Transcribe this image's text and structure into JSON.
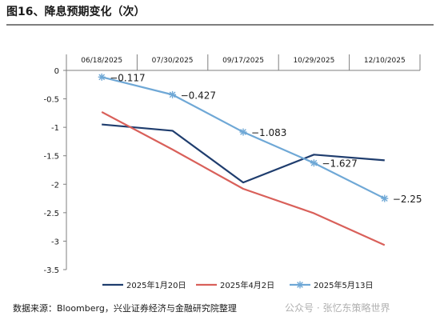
{
  "title": "图16、降息预期变化（次）",
  "source": "数据来源：Bloomberg，兴业证券经济与金融研究院整理",
  "watermark": "公众号 · 张忆东策略世界",
  "chart_data": {
    "type": "line",
    "categories": [
      "06/18/2025",
      "07/30/2025",
      "09/17/2025",
      "10/29/2025",
      "12/10/2025"
    ],
    "x_axis_position": "top",
    "ylim": [
      -3.5,
      0
    ],
    "yticks": [
      "0",
      "-0.5",
      "-1",
      "-1.5",
      "-2",
      "-2.5",
      "-3",
      "-3.5"
    ],
    "ytick_values": [
      0,
      -0.5,
      -1,
      -1.5,
      -2,
      -2.5,
      -3,
      -3.5
    ],
    "grid": false,
    "legend_position": "bottom",
    "series": [
      {
        "name": "2025年1月20日",
        "color": "#1f3d6e",
        "marker": "none",
        "values": [
          -0.95,
          -1.06,
          -1.97,
          -1.48,
          -1.58
        ]
      },
      {
        "name": "2025年4月2日",
        "color": "#d9605a",
        "marker": "none",
        "values": [
          -0.73,
          -1.39,
          -2.08,
          -2.51,
          -3.07
        ]
      },
      {
        "name": "2025年5月13日",
        "color": "#6fa8d6",
        "marker": "star",
        "values": [
          -0.117,
          -0.427,
          -1.083,
          -1.627,
          -2.25
        ],
        "data_labels": [
          "−0.117",
          "−0.427",
          "−1.083",
          "−1.627",
          "−2.25"
        ]
      }
    ]
  }
}
